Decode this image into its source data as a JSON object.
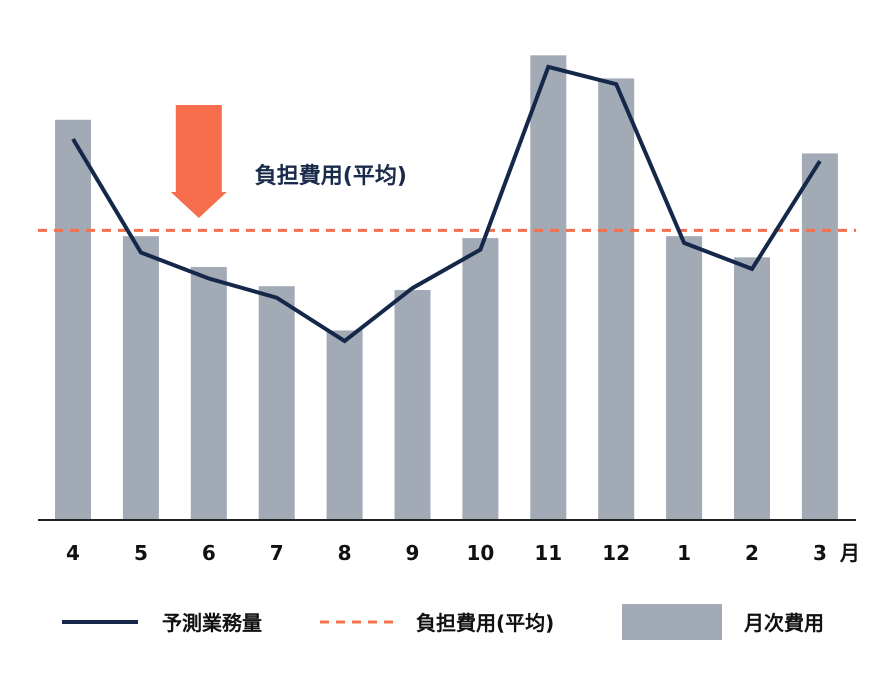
{
  "chart_data": {
    "type": "bar",
    "categories": [
      "4",
      "5",
      "6",
      "7",
      "8",
      "9",
      "10",
      "11",
      "12",
      "1",
      "2",
      "3"
    ],
    "x_unit_label": "月",
    "series": [
      {
        "name": "月次費用",
        "kind": "bar",
        "values": [
          415,
          294,
          262,
          242,
          196,
          238,
          292,
          482,
          458,
          294,
          272,
          380
        ]
      },
      {
        "name": "予測業務量",
        "kind": "line",
        "values": [
          395,
          277,
          250,
          230,
          185,
          240,
          280,
          470,
          452,
          287,
          260,
          372
        ]
      }
    ],
    "average": {
      "name": "負担費用(平均)",
      "value": 300
    },
    "ylim": [
      0,
      500
    ],
    "grid": false,
    "legend_position": "bottom",
    "annotation": {
      "text": "負担費用(平均)",
      "category": "6"
    },
    "colors": {
      "bar": "#a2aab6",
      "line": "#16284a",
      "average": "#f2714c",
      "arrow": "#f66e4b",
      "axis": "#222222"
    },
    "legend": [
      {
        "label": "予測業務量",
        "symbol": "line"
      },
      {
        "label": "負担費用(平均)",
        "symbol": "dashed-line"
      },
      {
        "label": "月次費用",
        "symbol": "box"
      }
    ]
  }
}
